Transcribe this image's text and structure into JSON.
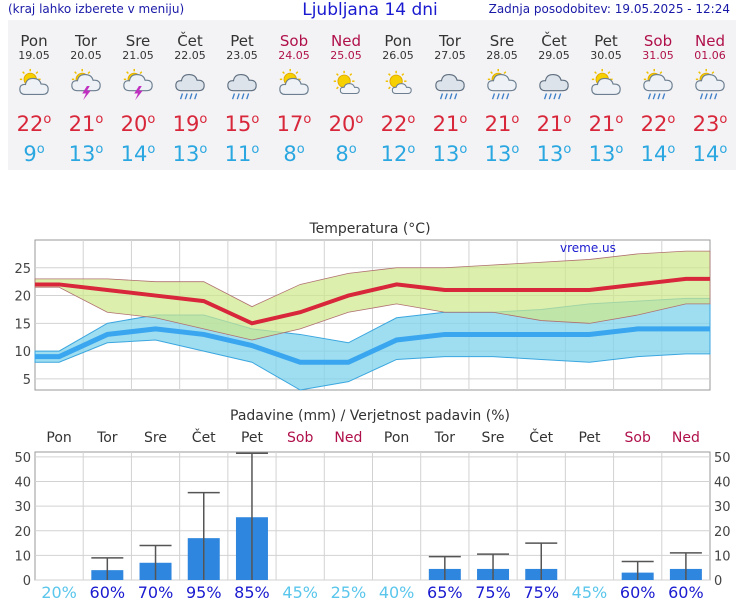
{
  "header": {
    "left": "(kraj lahko izberete v meniju)",
    "title": "Ljubljana 14 dni",
    "right": "Zadnja posodobitev: 19.05.2025 - 12:24"
  },
  "days": [
    {
      "name": "Pon",
      "date": "19.05",
      "weekend": false,
      "icon": "partly-cloudy-icon",
      "tmax": "22",
      "tmin": "9"
    },
    {
      "name": "Tor",
      "date": "20.05",
      "weekend": false,
      "icon": "thunderstorm-sun-icon",
      "tmax": "21",
      "tmin": "13"
    },
    {
      "name": "Sre",
      "date": "21.05",
      "weekend": false,
      "icon": "thunderstorm-sun-icon",
      "tmax": "20",
      "tmin": "14"
    },
    {
      "name": "Čet",
      "date": "22.05",
      "weekend": false,
      "icon": "rain-cloud-icon",
      "tmax": "19",
      "tmin": "13"
    },
    {
      "name": "Pet",
      "date": "23.05",
      "weekend": false,
      "icon": "rain-cloud-icon",
      "tmax": "15",
      "tmin": "11"
    },
    {
      "name": "Sob",
      "date": "24.05",
      "weekend": true,
      "icon": "partly-cloudy-icon",
      "tmax": "17",
      "tmin": "8"
    },
    {
      "name": "Ned",
      "date": "25.05",
      "weekend": true,
      "icon": "sun-small-cloud-icon",
      "tmax": "20",
      "tmin": "8"
    },
    {
      "name": "Pon",
      "date": "26.05",
      "weekend": false,
      "icon": "sun-small-cloud-icon",
      "tmax": "22",
      "tmin": "12"
    },
    {
      "name": "Tor",
      "date": "27.05",
      "weekend": false,
      "icon": "rain-cloud-icon",
      "tmax": "21",
      "tmin": "13"
    },
    {
      "name": "Sre",
      "date": "28.05",
      "weekend": false,
      "icon": "sun-rain-cloud-icon",
      "tmax": "21",
      "tmin": "13"
    },
    {
      "name": "Čet",
      "date": "29.05",
      "weekend": false,
      "icon": "rain-cloud-icon",
      "tmax": "21",
      "tmin": "13"
    },
    {
      "name": "Pet",
      "date": "30.05",
      "weekend": false,
      "icon": "partly-cloudy-icon",
      "tmax": "21",
      "tmin": "13"
    },
    {
      "name": "Sob",
      "date": "31.05",
      "weekend": true,
      "icon": "sun-rain-cloud-icon",
      "tmax": "22",
      "tmin": "14"
    },
    {
      "name": "Ned",
      "date": "01.06",
      "weekend": true,
      "icon": "sun-rain-cloud-icon",
      "tmax": "23",
      "tmin": "14"
    }
  ],
  "colors": {
    "max": "#d8263a",
    "min": "#2aa7e0",
    "weekend": "#b0104a",
    "max_band": "#cfe88a",
    "min_band": "#7fd3ec",
    "bar": "#2f86de"
  },
  "chart_data": [
    {
      "type": "line",
      "title": "Temperatura (°C)",
      "watermark": "vreme.us",
      "ylim": [
        3,
        30
      ],
      "yticks": [
        5,
        10,
        15,
        20,
        25
      ],
      "grid": true,
      "series": [
        {
          "values": [
            22,
            21,
            20,
            19,
            15,
            17,
            20,
            22,
            21,
            21,
            21,
            21,
            22,
            23
          ]
        },
        {
          "values": [
            9,
            13,
            14,
            13,
            11,
            8,
            8,
            12,
            13,
            13,
            13,
            13,
            14,
            14
          ]
        }
      ],
      "max_band": {
        "upper": [
          23,
          23,
          22.5,
          22.5,
          18,
          22,
          24,
          25,
          25,
          25.5,
          26,
          26.5,
          27.5,
          28
        ],
        "lower": [
          21.5,
          17,
          16,
          14,
          12,
          14,
          17,
          18.5,
          17,
          17,
          15.5,
          15,
          16.5,
          18.5
        ]
      },
      "min_band": {
        "upper": [
          10,
          15,
          16.5,
          16.5,
          14,
          13,
          11.5,
          16,
          17,
          17,
          17.5,
          18.5,
          19,
          19.5
        ],
        "lower": [
          8,
          11.5,
          12,
          10,
          8,
          3,
          4.5,
          8.5,
          9,
          9,
          8.5,
          8,
          9,
          9.5
        ]
      }
    },
    {
      "type": "bar",
      "title": "Padavine (mm) / Verjetnost padavin (%)",
      "categories": [
        "Pon",
        "Tor",
        "Sre",
        "Čet",
        "Pet",
        "Sob",
        "Ned",
        "Pon",
        "Tor",
        "Sre",
        "Čet",
        "Pet",
        "Sob",
        "Ned"
      ],
      "weekend": [
        false,
        false,
        false,
        false,
        false,
        true,
        true,
        false,
        false,
        false,
        false,
        false,
        true,
        true
      ],
      "ylim": [
        0,
        52
      ],
      "yticks": [
        0,
        10,
        20,
        30,
        40,
        50
      ],
      "values": [
        0,
        4,
        7,
        17,
        25.5,
        0,
        0,
        0,
        4.5,
        4.5,
        4.5,
        0,
        3,
        4.5
      ],
      "error_max": [
        0,
        9,
        14,
        35.5,
        51.5,
        0,
        0,
        0,
        9.5,
        10.5,
        15,
        0,
        7.5,
        11
      ],
      "probability": [
        "20%",
        "60%",
        "70%",
        "95%",
        "85%",
        "45%",
        "25%",
        "40%",
        "65%",
        "75%",
        "75%",
        "45%",
        "60%",
        "60%"
      ],
      "probability_level": [
        "low",
        "high",
        "high",
        "high",
        "high",
        "low",
        "low",
        "low",
        "high",
        "high",
        "high",
        "low",
        "high",
        "high"
      ]
    }
  ]
}
